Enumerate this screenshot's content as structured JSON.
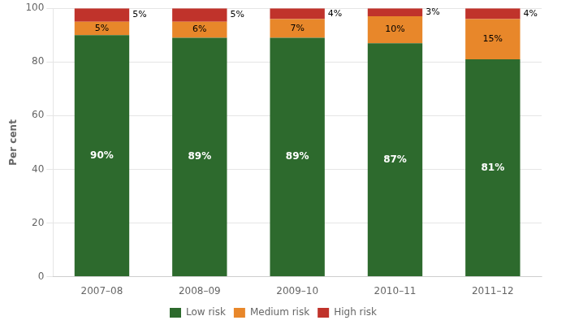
{
  "chart_data": {
    "type": "bar",
    "stacked": true,
    "categories": [
      "2007–08",
      "2008–09",
      "2009–10",
      "2010–11",
      "2011–12"
    ],
    "series": [
      {
        "name": "Low risk",
        "color": "#2d6a2d",
        "values": [
          90,
          89,
          89,
          87,
          81
        ],
        "value_labels": [
          "90%",
          "89%",
          "89%",
          "87%",
          "81%"
        ]
      },
      {
        "name": "Medium risk",
        "color": "#e8872a",
        "values": [
          5,
          6,
          7,
          10,
          15
        ],
        "value_labels": [
          "5%",
          "6%",
          "7%",
          "10%",
          "15%"
        ]
      },
      {
        "name": "High risk",
        "color": "#c0332b",
        "values": [
          5,
          5,
          4,
          3,
          4
        ],
        "value_labels": [
          "5%",
          "5%",
          "4%",
          "3%",
          "4%"
        ]
      }
    ],
    "ylabel": "Per cent",
    "ylim": [
      0,
      100
    ],
    "yticks": [
      0,
      20,
      40,
      60,
      80,
      100
    ],
    "grid": true,
    "legend": "bottom",
    "data_labels": true
  }
}
